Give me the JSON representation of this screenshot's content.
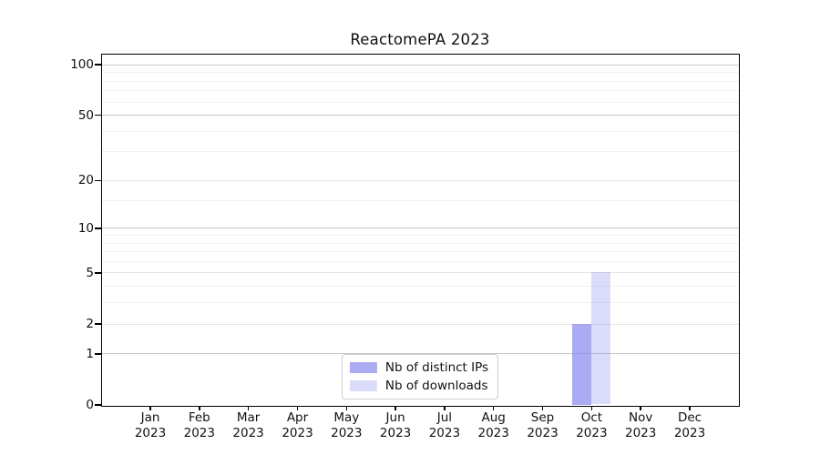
{
  "chart_data": {
    "type": "bar",
    "title": "ReactomePA 2023",
    "categories": [
      {
        "month": "Jan",
        "year": "2023"
      },
      {
        "month": "Feb",
        "year": "2023"
      },
      {
        "month": "Mar",
        "year": "2023"
      },
      {
        "month": "Apr",
        "year": "2023"
      },
      {
        "month": "May",
        "year": "2023"
      },
      {
        "month": "Jun",
        "year": "2023"
      },
      {
        "month": "Jul",
        "year": "2023"
      },
      {
        "month": "Aug",
        "year": "2023"
      },
      {
        "month": "Sep",
        "year": "2023"
      },
      {
        "month": "Oct",
        "year": "2023"
      },
      {
        "month": "Nov",
        "year": "2023"
      },
      {
        "month": "Dec",
        "year": "2023"
      }
    ],
    "series": [
      {
        "name": "Nb of distinct IPs",
        "color": "#8888ee",
        "alpha": 0.7,
        "values": [
          0,
          0,
          0,
          0,
          0,
          0,
          0,
          0,
          0,
          2,
          0,
          0
        ]
      },
      {
        "name": "Nb of downloads",
        "color": "#8888ee",
        "alpha": 0.3,
        "values": [
          0,
          0,
          0,
          0,
          0,
          0,
          0,
          0,
          0,
          5,
          0,
          0
        ]
      }
    ],
    "xlabel": "",
    "ylabel": "",
    "yscale": "log1p",
    "ylim": [
      0,
      115
    ],
    "yticks": [
      0,
      1,
      2,
      5,
      10,
      20,
      50,
      100
    ],
    "yticks_minor": [
      3,
      4,
      6,
      7,
      8,
      9,
      15,
      30,
      40,
      60,
      70,
      80,
      90
    ],
    "grid": "horizontal",
    "legend_position": "lower-center-inside"
  },
  "colors": {
    "background": "#ffffff",
    "axis": "#000000",
    "text": "#111111",
    "grid_major": "#c9c9c9",
    "grid_light": "#e4e4e4",
    "grid_minor": "#f1f1f1",
    "legend_border": "#cccccc"
  }
}
